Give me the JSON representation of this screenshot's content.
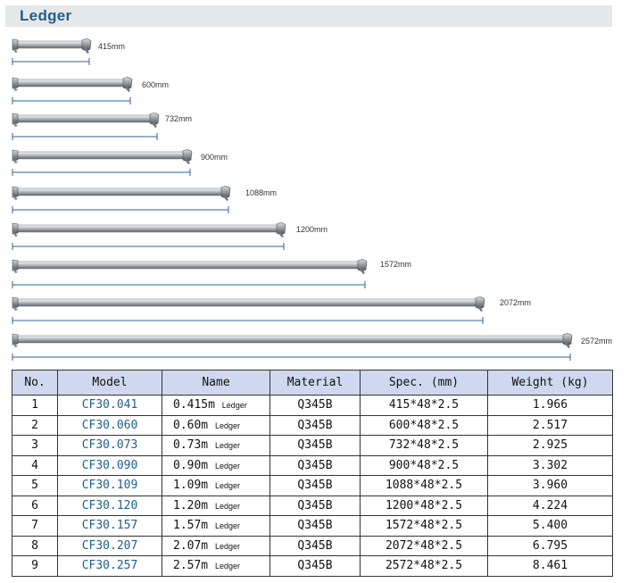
{
  "header": {
    "title": "Ledger"
  },
  "colors": {
    "header_bg": "#e6e7e9",
    "title": "#1f5e8c",
    "table_header_bg": "#cfd8ef",
    "model_text": "#1f5e8c"
  },
  "ledgers": [
    {
      "label": "415mm"
    },
    {
      "label": "600mm"
    },
    {
      "label": "732mm"
    },
    {
      "label": "900mm"
    },
    {
      "label": "1088mm"
    },
    {
      "label": "1200mm"
    },
    {
      "label": "1572mm"
    },
    {
      "label": "2072mm"
    },
    {
      "label": "2572mm"
    }
  ],
  "table": {
    "headers": [
      "No.",
      "Model",
      "Name",
      "Material",
      "Spec. (mm)",
      "Weight (kg)"
    ],
    "rows": [
      {
        "no": "1",
        "model": "CF30.041",
        "name_main": "0.415m",
        "name_sub": "Ledger",
        "material": "Q345B",
        "spec": "415*48*2.5",
        "weight": "1.966"
      },
      {
        "no": "2",
        "model": "CF30.060",
        "name_main": "0.60m",
        "name_sub": "Ledger",
        "material": "Q345B",
        "spec": "600*48*2.5",
        "weight": "2.517"
      },
      {
        "no": "3",
        "model": "CF30.073",
        "name_main": "0.73m",
        "name_sub": "Ledger",
        "material": "Q345B",
        "spec": "732*48*2.5",
        "weight": "2.925"
      },
      {
        "no": "4",
        "model": "CF30.090",
        "name_main": "0.90m",
        "name_sub": "Ledger",
        "material": "Q345B",
        "spec": "900*48*2.5",
        "weight": "3.302"
      },
      {
        "no": "5",
        "model": "CF30.109",
        "name_main": "1.09m",
        "name_sub": "Ledger",
        "material": "Q345B",
        "spec": "1088*48*2.5",
        "weight": "3.960"
      },
      {
        "no": "6",
        "model": "CF30.120",
        "name_main": "1.20m",
        "name_sub": "Ledger",
        "material": "Q345B",
        "spec": "1200*48*2.5",
        "weight": "4.224"
      },
      {
        "no": "7",
        "model": "CF30.157",
        "name_main": "1.57m",
        "name_sub": "Ledger",
        "material": "Q345B",
        "spec": "1572*48*2.5",
        "weight": "5.400"
      },
      {
        "no": "8",
        "model": "CF30.207",
        "name_main": "2.07m",
        "name_sub": "Ledger",
        "material": "Q345B",
        "spec": "2072*48*2.5",
        "weight": "6.795"
      },
      {
        "no": "9",
        "model": "CF30.257",
        "name_main": "2.57m",
        "name_sub": "Ledger",
        "material": "Q345B",
        "spec": "2572*48*2.5",
        "weight": "8.461"
      }
    ]
  }
}
